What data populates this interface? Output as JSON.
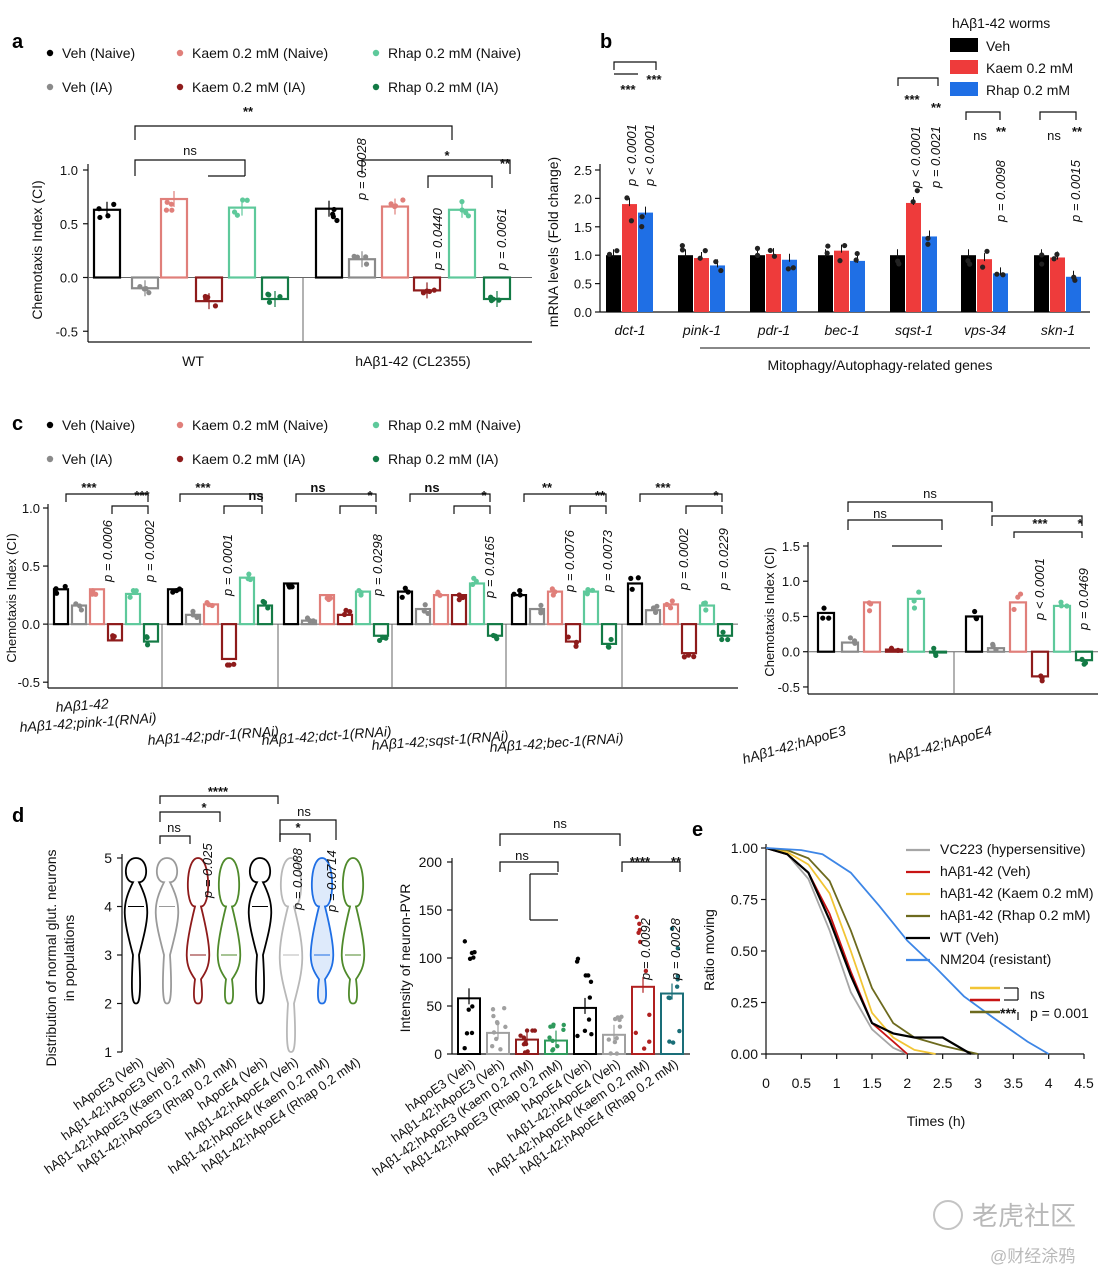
{
  "colors": {
    "veh_naive": "#000000",
    "veh_ia": "#8a8a8a",
    "kaem_naive": "#e07f7a",
    "kaem_ia": "#8e1b1b",
    "rhap_naive": "#5ec99b",
    "rhap_ia": "#137a45",
    "b_veh": "#000000",
    "b_kaem": "#ee3b3b",
    "b_rhap": "#1f6fe5",
    "e_vc223": "#a6a6a6",
    "e_hab_veh": "#c81414",
    "e_hab_kaem": "#f2c535",
    "e_hab_rhap": "#6d6a1e",
    "e_wt": "#000000",
    "e_nm204": "#3d86e6"
  },
  "panel_labels": {
    "a": "a",
    "b": "b",
    "c": "c",
    "d": "d",
    "e": "e"
  },
  "legend_ac": [
    {
      "key": "veh_naive",
      "label": "Veh (Naive)"
    },
    {
      "key": "kaem_naive",
      "label": "Kaem 0.2 mM (Naive)"
    },
    {
      "key": "rhap_naive",
      "label": "Rhap 0.2 mM (Naive)"
    },
    {
      "key": "veh_ia",
      "label": "Veh (IA)"
    },
    {
      "key": "kaem_ia",
      "label": "Kaem 0.2 mM (IA)"
    },
    {
      "key": "rhap_ia",
      "label": "Rhap 0.2 mM (IA)"
    }
  ],
  "chart_data": [
    {
      "id": "a",
      "type": "bar",
      "ylabel": "Chemotaxis Index (CI)",
      "ylim": [
        -0.6,
        1.0
      ],
      "yticks": [
        "1.0",
        "0.5",
        "0.0",
        "-0.5"
      ],
      "groups": [
        {
          "label": "WT",
          "series": [
            "veh_naive",
            "veh_ia",
            "kaem_naive",
            "kaem_ia",
            "rhap_naive",
            "rhap_ia"
          ],
          "values": [
            0.63,
            -0.1,
            0.73,
            -0.22,
            0.65,
            -0.2
          ]
        },
        {
          "label": "hAβ1-42 (CL2355)",
          "series": [
            "veh_naive",
            "veh_ia",
            "kaem_naive",
            "kaem_ia",
            "rhap_naive",
            "rhap_ia"
          ],
          "values": [
            0.64,
            0.17,
            0.66,
            -0.12,
            0.63,
            -0.2
          ]
        }
      ],
      "annotations": [
        "**",
        "ns",
        "p = 0.0028",
        "*",
        "**",
        "p = 0.0440",
        "p = 0.0061"
      ]
    },
    {
      "id": "b",
      "type": "bar",
      "ylabel": "mRNA levels (Fold change)",
      "ylim": [
        0,
        2.5
      ],
      "yticks": [
        "2.5",
        "2.0",
        "1.5",
        "1.0",
        "0.5",
        "0.0"
      ],
      "legend_title": "hAβ1-42 worms",
      "series": [
        {
          "name": "Veh",
          "key": "b_veh"
        },
        {
          "name": "Kaem 0.2 mM",
          "key": "b_kaem"
        },
        {
          "name": "Rhap 0.2 mM",
          "key": "b_rhap"
        }
      ],
      "categories": [
        "dct-1",
        "pink-1",
        "pdr-1",
        "bec-1",
        "sqst-1",
        "vps-34",
        "skn-1"
      ],
      "values": [
        [
          1.0,
          1.9,
          1.75
        ],
        [
          1.0,
          0.95,
          0.82
        ],
        [
          1.0,
          1.02,
          0.92
        ],
        [
          1.0,
          1.08,
          0.9
        ],
        [
          1.0,
          1.92,
          1.33
        ],
        [
          1.0,
          0.93,
          0.68
        ],
        [
          1.0,
          0.96,
          0.62
        ]
      ],
      "xlabel": "Mitophagy/Autophagy-related genes",
      "annotations": [
        "***",
        "***",
        "p < 0.0001",
        "p < 0.0001",
        "***",
        "**",
        "p < 0.0001",
        "p = 0.0021",
        "ns",
        "**",
        "p = 0.0098",
        "ns",
        "**",
        "p = 0.0015"
      ]
    },
    {
      "id": "c-left",
      "type": "bar",
      "ylabel": "Chemotaxis Index (CI)",
      "ylim": [
        -0.55,
        1.0
      ],
      "yticks": [
        "1.0",
        "0.5",
        "0.0",
        "-0.5"
      ],
      "groups": [
        {
          "label": "hAβ1-42",
          "values": [
            0.3,
            0.16,
            0.3,
            -0.14,
            0.26,
            -0.15
          ]
        },
        {
          "label": "hAβ1-42;pink-1(RNAi)",
          "values": [
            0.3,
            0.08,
            0.17,
            -0.3,
            0.4,
            0.16
          ]
        },
        {
          "label": "hAβ1-42;pdr-1(RNAi)",
          "values": [
            0.35,
            0.03,
            0.25,
            0.08,
            0.28,
            -0.1
          ]
        },
        {
          "label": "hAβ1-42;dct-1(RNAi)",
          "values": [
            0.28,
            0.13,
            0.25,
            0.25,
            0.35,
            -0.1
          ]
        },
        {
          "label": "hAβ1-42;sqst-1(RNAi)",
          "values": [
            0.25,
            0.13,
            0.28,
            -0.15,
            0.28,
            -0.17
          ]
        },
        {
          "label": "hAβ1-42;bec-1(RNAi)",
          "values": [
            0.35,
            0.12,
            0.17,
            -0.25,
            0.16,
            -0.1
          ]
        }
      ],
      "annotations": [
        "***",
        "***",
        "p = 0.0006",
        "p = 0.0002",
        "***",
        "ns",
        "p = 0.0001",
        "ns",
        "*",
        "p = 0.0298",
        "ns",
        "*",
        "p = 0.0165",
        "**",
        "**",
        "p = 0.0076",
        "p = 0.0073",
        "***",
        "*",
        "p = 0.0002",
        "p = 0.0229"
      ]
    },
    {
      "id": "c-right",
      "type": "bar",
      "ylabel": "Chemotaxis Index (CI)",
      "ylim": [
        -0.6,
        1.5
      ],
      "yticks": [
        "1.5",
        "1.0",
        "0.5",
        "0.0",
        "-0.5"
      ],
      "groups": [
        {
          "label": "hAβ1-42;hApoE3",
          "values": [
            0.55,
            0.13,
            0.7,
            0.03,
            0.75,
            0.0
          ]
        },
        {
          "label": "hAβ1-42;hApoE4",
          "values": [
            0.5,
            0.05,
            0.7,
            -0.35,
            0.65,
            -0.12
          ]
        }
      ],
      "annotations": [
        "ns",
        "ns",
        "***",
        "*",
        "p < 0.0001",
        "p = 0.0469"
      ]
    },
    {
      "id": "d-left",
      "type": "violin",
      "ylabel": "Distribution of normal glut. neurons in populations",
      "ylim": [
        1,
        5
      ],
      "yticks": [
        "5",
        "4",
        "3",
        "2",
        "1"
      ],
      "categories": [
        "hApoE3 (Veh)",
        "hAβ1-42;hApoE3 (Veh)",
        "hAβ1-42;hApoE3 (Kaem 0.2 mM)",
        "hAβ1-42;hApoE3 (Rhap 0.2 mM)",
        "hApoE4 (Veh)",
        "hAβ1-42;hApoE4 (Veh)",
        "hAβ1-42;hApoE4 (Kaem 0.2 mM)",
        "hAβ1-42;hApoE4 (Rhap 0.2 mM)"
      ],
      "medians": [
        4,
        4,
        3,
        3,
        4,
        3,
        3,
        3
      ],
      "annotations": [
        "****",
        "*",
        "ns",
        "p = 0.025",
        "ns",
        "*",
        "p = 0.0088",
        "p = 0.0714"
      ]
    },
    {
      "id": "d-right",
      "type": "bar",
      "ylabel": "Intensity of neuron-PVR",
      "ylim": [
        0,
        200
      ],
      "yticks": [
        "200",
        "150",
        "100",
        "50",
        "0"
      ],
      "categories": [
        "hApoE3 (Veh)",
        "hAβ1-42;hApoE3 (Veh)",
        "hAβ1-42;hApoE3 (Kaem 0.2 mM)",
        "hAβ1-42;hApoE3 (Rhap 0.2 mM)",
        "hApoE4 (Veh)",
        "hAβ1-42;hApoE4 (Veh)",
        "hAβ1-42;hApoE4 (Kaem 0.2 mM)",
        "hAβ1-42;hApoE4 (Rhap 0.2 mM)"
      ],
      "values": [
        58,
        22,
        15,
        14,
        48,
        20,
        70,
        63
      ],
      "annotations": [
        "ns",
        "ns",
        "****",
        "**",
        "p = 0.0092",
        "p = 0.0028"
      ]
    },
    {
      "id": "e",
      "type": "line",
      "xlabel": "Times (h)",
      "ylabel": "Ratio moving",
      "xlim": [
        0,
        4.5
      ],
      "ylim": [
        0,
        1.0
      ],
      "xticks": [
        "0",
        "0.5",
        "1",
        "1.5",
        "2",
        "2.5",
        "3",
        "3.5",
        "4",
        "4.5"
      ],
      "yticks": [
        "1.00",
        "0.75",
        "0.50",
        "0.25",
        "0.00"
      ],
      "series": [
        {
          "name": "VC223 (hypersensitive)",
          "key": "e_vc223",
          "x": [
            0,
            0.3,
            0.6,
            0.9,
            1.2,
            1.5,
            1.8,
            2.0
          ],
          "y": [
            1.0,
            0.97,
            0.85,
            0.6,
            0.3,
            0.12,
            0.03,
            0.0
          ]
        },
        {
          "name": "hAβ1-42 (Veh)",
          "key": "e_hab_veh",
          "x": [
            0,
            0.3,
            0.6,
            0.9,
            1.2,
            1.5,
            1.8,
            2.0
          ],
          "y": [
            1.0,
            0.97,
            0.88,
            0.68,
            0.4,
            0.15,
            0.06,
            0.0
          ]
        },
        {
          "name": "hAβ1-42 (Kaem 0.2 mM)",
          "key": "e_hab_kaem",
          "x": [
            0,
            0.3,
            0.6,
            0.9,
            1.2,
            1.5,
            1.8,
            2.1,
            2.4
          ],
          "y": [
            1.0,
            0.98,
            0.92,
            0.78,
            0.5,
            0.2,
            0.08,
            0.02,
            0.0
          ]
        },
        {
          "name": "hAβ1-42 (Rhap 0.2 mM)",
          "key": "e_hab_rhap",
          "x": [
            0,
            0.3,
            0.6,
            0.9,
            1.2,
            1.5,
            1.8,
            2.1,
            2.5,
            3.0
          ],
          "y": [
            1.0,
            0.99,
            0.95,
            0.84,
            0.6,
            0.32,
            0.15,
            0.08,
            0.04,
            0.0
          ]
        },
        {
          "name": "WT (Veh)",
          "key": "e_wt",
          "x": [
            0,
            0.3,
            0.6,
            0.9,
            1.2,
            1.5,
            1.8,
            2.1,
            2.5,
            2.9
          ],
          "y": [
            1.0,
            0.97,
            0.88,
            0.65,
            0.38,
            0.15,
            0.1,
            0.08,
            0.08,
            0.0
          ]
        },
        {
          "name": "NM204 (resistant)",
          "key": "e_nm204",
          "x": [
            0,
            0.5,
            0.8,
            1.2,
            1.6,
            2.0,
            2.4,
            2.8,
            3.2,
            3.7,
            4.0
          ],
          "y": [
            1.0,
            0.99,
            0.97,
            0.88,
            0.72,
            0.55,
            0.42,
            0.28,
            0.18,
            0.06,
            0.0
          ]
        }
      ],
      "legend_lines": [
        "e_hab_kaem",
        "e_hab_veh",
        "e_hab_rhap"
      ],
      "annotations": [
        "ns",
        "***",
        "p = 0.001"
      ]
    }
  ],
  "axis_labels_b": [
    "dct-1",
    "pink-1",
    "pdr-1",
    "bec-1",
    "sqst-1",
    "vps-34",
    "skn-1"
  ],
  "watermark": {
    "text": "老虎社区",
    "sub": "@财经涂鸦"
  }
}
